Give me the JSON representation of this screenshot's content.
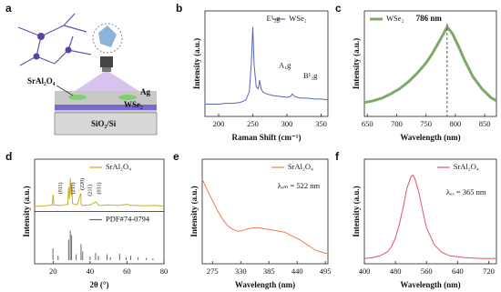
{
  "chart_data": [
    {
      "type": "diagram",
      "panel": "a",
      "labels": [
        "SrAl₂O₄",
        "Ag",
        "WSe₂",
        "SiO₂/Si"
      ]
    },
    {
      "type": "line",
      "panel": "b",
      "xlabel": "Raman Shift (cm⁻¹)",
      "ylabel": "Intensity (a.u.)",
      "xlim": [
        180,
        360
      ],
      "xticks": [
        200,
        250,
        300,
        350
      ],
      "ylim": [
        0,
        110
      ],
      "annotations": [
        "E¹₂g",
        "A₁g",
        "B¹₂g"
      ],
      "series": [
        {
          "name": "WSe₂",
          "color": "#5566b5",
          "x": [
            180,
            190,
            200,
            210,
            220,
            230,
            235,
            240,
            245,
            248,
            250,
            252,
            255,
            258,
            260,
            262,
            265,
            270,
            280,
            290,
            300,
            305,
            308,
            311,
            315,
            320,
            330,
            340,
            350,
            360
          ],
          "values": [
            10,
            10,
            10,
            11,
            11,
            12,
            13,
            15,
            25,
            60,
            100,
            55,
            30,
            28,
            38,
            28,
            24,
            22,
            20,
            19,
            18,
            19,
            22,
            19,
            18,
            17,
            17,
            16,
            16,
            15
          ]
        }
      ]
    },
    {
      "type": "line",
      "panel": "c",
      "xlabel": "Wavelength (nm)",
      "ylabel": "Intensity (a.u.)",
      "xlim": [
        645,
        870
      ],
      "xticks": [
        650,
        700,
        750,
        800,
        850
      ],
      "ylim": [
        0,
        110
      ],
      "annotations": [
        {
          "value": 786,
          "label": "786 nm"
        }
      ],
      "series": [
        {
          "name": "WSe₂",
          "color": "#7fa86a",
          "x": [
            645,
            660,
            675,
            690,
            705,
            720,
            735,
            750,
            760,
            770,
            780,
            786,
            795,
            805,
            815,
            830,
            845,
            860,
            870
          ],
          "values": [
            12,
            14,
            17,
            22,
            28,
            36,
            46,
            58,
            68,
            80,
            92,
            100,
            92,
            78,
            62,
            42,
            28,
            18,
            14
          ]
        }
      ]
    },
    {
      "type": "xrd",
      "panel": "d",
      "xlabel": "2θ (°)",
      "ylabel": "Intensity (a.u.)",
      "xlim": [
        10,
        80
      ],
      "xticks": [
        20,
        40,
        60,
        80
      ],
      "annotations": [
        "(011)",
        "(211)",
        "(220)",
        "(211)",
        "(031)"
      ],
      "series": [
        {
          "name": "SrAl₂O₄",
          "color": "#c8b020",
          "ylim": [
            0,
            110
          ],
          "x": [
            10,
            14,
            18,
            19.5,
            20,
            20.5,
            24,
            28,
            28.4,
            28.8,
            29.3,
            29.8,
            30.1,
            30.5,
            33,
            35,
            35.2,
            35.5,
            40,
            43,
            45,
            50,
            55,
            60,
            62,
            65,
            70,
            75,
            80
          ],
          "values": [
            5,
            6,
            8,
            10,
            45,
            10,
            8,
            12,
            70,
            30,
            100,
            40,
            85,
            15,
            10,
            50,
            12,
            8,
            10,
            20,
            8,
            10,
            8,
            12,
            9,
            8,
            7,
            8,
            6
          ]
        },
        {
          "name": "PDF#74-0794",
          "color": "#666666",
          "ylim": [
            0,
            110
          ],
          "style": "stick",
          "x": [
            19.9,
            22.7,
            28.4,
            29.3,
            30.0,
            32.5,
            35.1,
            36.0,
            40.0,
            43.0,
            44.5,
            49.2,
            51.0,
            56.0,
            59.5,
            62.0,
            66.0,
            70.5,
            74.0
          ],
          "values": [
            40,
            15,
            70,
            100,
            85,
            20,
            55,
            30,
            12,
            25,
            15,
            20,
            10,
            22,
            10,
            15,
            10,
            8,
            6
          ]
        }
      ]
    },
    {
      "type": "line",
      "panel": "e",
      "xlabel": "Wavelength (nm)",
      "ylabel": "Intensity (a.u.)",
      "xlim": [
        255,
        500
      ],
      "xticks": [
        275,
        330,
        385,
        440,
        495
      ],
      "ylim": [
        0,
        110
      ],
      "annotations": [
        "λₑₘ = 522 nm"
      ],
      "series": [
        {
          "name": "SrAl₂O₄",
          "color": "#f07855",
          "x": [
            255,
            265,
            275,
            285,
            295,
            305,
            315,
            325,
            335,
            345,
            355,
            365,
            375,
            385,
            395,
            405,
            415,
            425,
            435,
            445,
            455,
            465,
            475,
            485,
            495,
            500
          ],
          "values": [
            95,
            82,
            70,
            58,
            48,
            40,
            36,
            34,
            35,
            37,
            38,
            38,
            37,
            36,
            35,
            34,
            33,
            30,
            27,
            24,
            20,
            16,
            12,
            10,
            8,
            8
          ]
        }
      ]
    },
    {
      "type": "line",
      "panel": "f",
      "xlabel": "Wavelength (nm)",
      "ylabel": "Intensity (a.u.)",
      "xlim": [
        400,
        740
      ],
      "xticks": [
        400,
        480,
        560,
        640,
        720
      ],
      "ylim": [
        0,
        110
      ],
      "annotations": [
        "λₑₓ = 365 nm"
      ],
      "series": [
        {
          "name": "SrAl₂O₄",
          "color": "#e05565",
          "x": [
            400,
            420,
            440,
            460,
            470,
            480,
            490,
            500,
            510,
            520,
            525,
            530,
            540,
            550,
            560,
            580,
            600,
            620,
            660,
            700,
            740
          ],
          "values": [
            2,
            3,
            5,
            10,
            16,
            26,
            42,
            62,
            85,
            98,
            100,
            96,
            80,
            58,
            38,
            18,
            9,
            5,
            3,
            2,
            2
          ]
        }
      ]
    }
  ]
}
